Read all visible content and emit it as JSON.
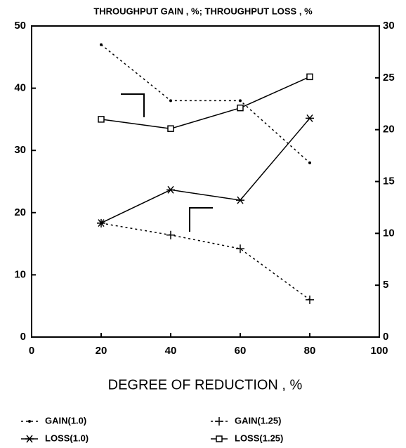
{
  "chart_data": {
    "type": "line",
    "title": "THROUGHPUT GAIN , %; THROUGHPUT LOSS , %",
    "xlabel": "DEGREE OF REDUCTION , %",
    "x": [
      20,
      40,
      60,
      80
    ],
    "xlim": [
      0,
      100
    ],
    "xticks": [
      0,
      20,
      40,
      60,
      80,
      100
    ],
    "ylim": [
      0,
      50
    ],
    "yticks": [
      0,
      10,
      20,
      30,
      40,
      50
    ],
    "y2lim": [
      0,
      30
    ],
    "y2ticks": [
      0,
      5,
      10,
      15,
      20,
      25,
      30
    ],
    "series": [
      {
        "name": "GAIN(1.0)",
        "color": "#000",
        "dash": "3,4",
        "marker": "dot",
        "values": [
          47,
          38,
          38,
          28
        ]
      },
      {
        "name": "GAIN(1.25)",
        "color": "#000",
        "dash": "3,4",
        "marker": "plus",
        "values": [
          18.3,
          16.4,
          14.2,
          6
        ]
      },
      {
        "name": "LOSS(1.0)",
        "color": "#000",
        "dash": "none",
        "marker": "asterisk",
        "axis": "y2",
        "values": [
          11,
          14.2,
          13.2,
          21.1
        ]
      },
      {
        "name": "LOSS(1.25)",
        "color": "#000",
        "dash": "none",
        "marker": "square",
        "axis": "y2",
        "values": [
          21,
          20.1,
          22.1,
          25.1
        ]
      }
    ]
  }
}
